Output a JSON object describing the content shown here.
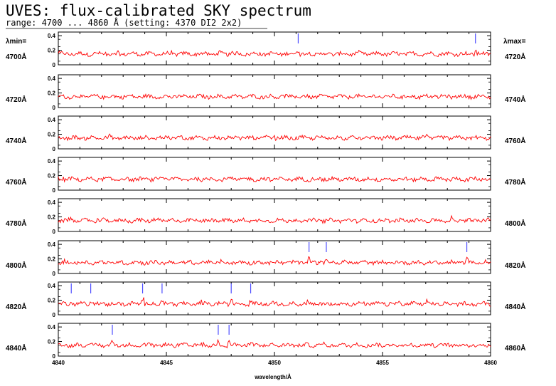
{
  "header": {
    "title": "UVES: flux-calibrated SKY spectrum",
    "subtitle": "range: 4700 ... 4860 Å (setting: 4370 DI2 2x2)"
  },
  "side_labels": {
    "lambda_min": "λmin=",
    "lambda_max": "λmax="
  },
  "colors": {
    "spectrum": "#ff0000",
    "markers": "#4d4dff",
    "axes": "#000000",
    "background": "#ffffff"
  },
  "chart_data": {
    "type": "line",
    "title": "UVES: flux-calibrated SKY spectrum",
    "xlabel": "wavelength/Å",
    "ylabel": "",
    "y_ticks": [
      "0",
      "0.2",
      "0.4"
    ],
    "ylim": [
      0,
      0.45
    ],
    "x_ticks": [
      "4840",
      "4845",
      "4850",
      "4855",
      "4860"
    ],
    "baseline_flux": 0.15,
    "noise_amplitude": 0.025,
    "panels": [
      {
        "lmin_label": "4700Å",
        "lmax_label": "4720Å",
        "xlim": [
          4700,
          4720
        ],
        "markers": [
          4711.1,
          4719.3
        ]
      },
      {
        "lmin_label": "4720Å",
        "lmax_label": "4740Å",
        "xlim": [
          4720,
          4740
        ],
        "markers": []
      },
      {
        "lmin_label": "4740Å",
        "lmax_label": "4760Å",
        "xlim": [
          4740,
          4760
        ],
        "markers": []
      },
      {
        "lmin_label": "4760Å",
        "lmax_label": "4780Å",
        "xlim": [
          4760,
          4780
        ],
        "markers": []
      },
      {
        "lmin_label": "4780Å",
        "lmax_label": "4800Å",
        "xlim": [
          4780,
          4800
        ],
        "markers": []
      },
      {
        "lmin_label": "4800Å",
        "lmax_label": "4820Å",
        "xlim": [
          4800,
          4820
        ],
        "markers": [
          4811.6,
          4812.4,
          4818.9
        ]
      },
      {
        "lmin_label": "4820Å",
        "lmax_label": "4840Å",
        "xlim": [
          4820,
          4840
        ],
        "markers": [
          4820.6,
          4821.5,
          4823.9,
          4824.8,
          4828.0,
          4828.9
        ]
      },
      {
        "lmin_label": "4840Å",
        "lmax_label": "4860Å",
        "xlim": [
          4840,
          4860
        ],
        "markers": [
          4842.5,
          4847.4,
          4847.9
        ]
      }
    ]
  }
}
